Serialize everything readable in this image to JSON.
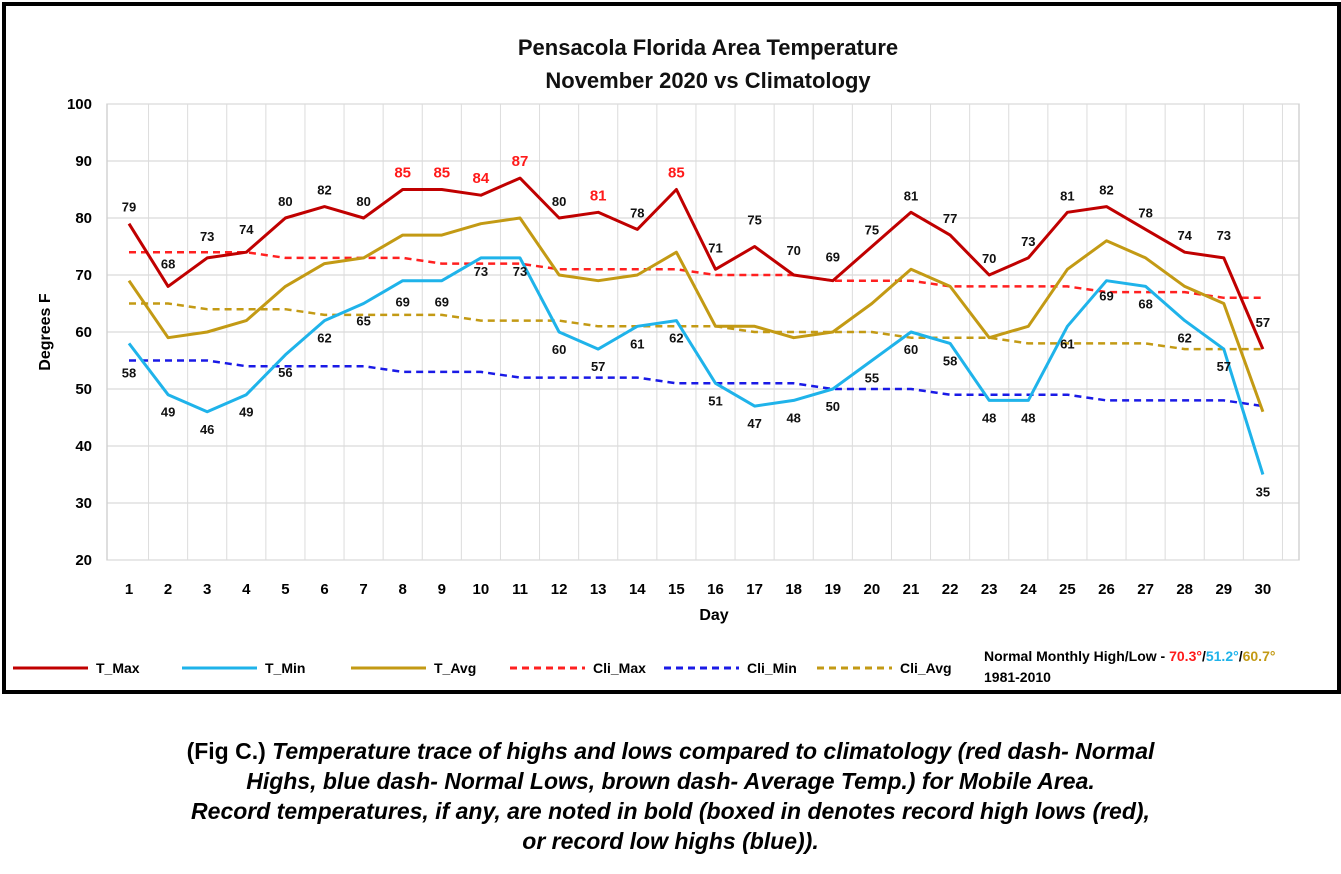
{
  "chart_data": {
    "type": "line",
    "title": [
      "Pensacola Florida Area Temperature",
      "November 2020 vs Climatology"
    ],
    "xlabel": "Day",
    "ylabel": "Degrees F",
    "ylim": [
      20,
      100
    ],
    "yticks": [
      20,
      30,
      40,
      50,
      60,
      70,
      80,
      90,
      100
    ],
    "grid": true,
    "legend_placement": "bottom",
    "x": [
      1,
      2,
      3,
      4,
      5,
      6,
      7,
      8,
      9,
      10,
      11,
      12,
      13,
      14,
      15,
      16,
      17,
      18,
      19,
      20,
      21,
      22,
      23,
      24,
      25,
      26,
      27,
      28,
      29,
      30
    ],
    "series": [
      {
        "name": "T_Max",
        "color": "#c00000",
        "dash": false,
        "values": [
          79,
          68,
          73,
          74,
          80,
          82,
          80,
          85,
          85,
          84,
          87,
          80,
          81,
          78,
          85,
          71,
          75,
          70,
          69,
          75,
          81,
          77,
          70,
          73,
          81,
          82,
          78,
          74,
          73,
          57
        ]
      },
      {
        "name": "T_Min",
        "color": "#1fb3ea",
        "dash": false,
        "values": [
          58,
          49,
          46,
          49,
          56,
          62,
          65,
          69,
          69,
          73,
          73,
          60,
          57,
          61,
          62,
          51,
          47,
          48,
          50,
          55,
          60,
          58,
          48,
          48,
          61,
          69,
          68,
          62,
          57,
          35
        ]
      },
      {
        "name": "T_Avg",
        "color": "#c39a14",
        "dash": false,
        "values": [
          69,
          59,
          60,
          62,
          68,
          72,
          73,
          77,
          77,
          79,
          80,
          70,
          69,
          70,
          74,
          61,
          61,
          59,
          60,
          65,
          71,
          68,
          59,
          61,
          71,
          76,
          73,
          68,
          65,
          46
        ]
      },
      {
        "name": "Cli_Max",
        "color": "#ff2020",
        "dash": true,
        "values": [
          74,
          74,
          74,
          74,
          73,
          73,
          73,
          73,
          72,
          72,
          72,
          71,
          71,
          71,
          71,
          70,
          70,
          70,
          69,
          69,
          69,
          68,
          68,
          68,
          68,
          67,
          67,
          67,
          66,
          66
        ]
      },
      {
        "name": "Cli_Min",
        "color": "#1a1ae6",
        "dash": true,
        "values": [
          55,
          55,
          55,
          54,
          54,
          54,
          54,
          53,
          53,
          53,
          52,
          52,
          52,
          52,
          51,
          51,
          51,
          51,
          50,
          50,
          50,
          49,
          49,
          49,
          49,
          48,
          48,
          48,
          48,
          47
        ]
      },
      {
        "name": "Cli_Avg",
        "color": "#c39a14",
        "dash": true,
        "values": [
          65,
          65,
          64,
          64,
          64,
          63,
          63,
          63,
          63,
          62,
          62,
          62,
          61,
          61,
          61,
          61,
          60,
          60,
          60,
          60,
          59,
          59,
          59,
          58,
          58,
          58,
          58,
          57,
          57,
          57
        ]
      }
    ],
    "labels_max": [
      79,
      68,
      73,
      74,
      80,
      82,
      80,
      85,
      85,
      84,
      87,
      80,
      81,
      78,
      85,
      71,
      75,
      70,
      69,
      75,
      81,
      77,
      70,
      73,
      81,
      82,
      78,
      74,
      73,
      57
    ],
    "record_days": [
      8,
      9,
      10,
      11,
      13,
      15
    ],
    "labels_min": [
      58,
      49,
      46,
      49,
      56,
      62,
      65,
      69,
      69,
      73,
      73,
      60,
      57,
      61,
      62,
      51,
      47,
      48,
      50,
      55,
      60,
      58,
      48,
      48,
      61,
      69,
      68,
      62,
      57,
      35
    ],
    "normals_note": {
      "prefix": "Normal Monthly High/Low - ",
      "high": "70.3°",
      "sep1": "/",
      "low": "51.2°",
      "sep2": "/",
      "avg": "60.7°",
      "period": "1981-2010",
      "high_color": "#ff1a1a",
      "low_color": "#1fb3ea",
      "avg_color": "#c39a14"
    }
  },
  "caption": {
    "line1_lead": "(Fig C.) ",
    "line1_rest": "Temperature trace of highs and lows compared to climatology (red dash- Normal",
    "line2": "Highs, blue dash- Normal Lows, brown dash- Average Temp.) for Mobile Area.",
    "line3": "Record temperatures, if any, are noted in bold (boxed in denotes record high lows (red),",
    "line4": "or record low highs (blue))."
  }
}
